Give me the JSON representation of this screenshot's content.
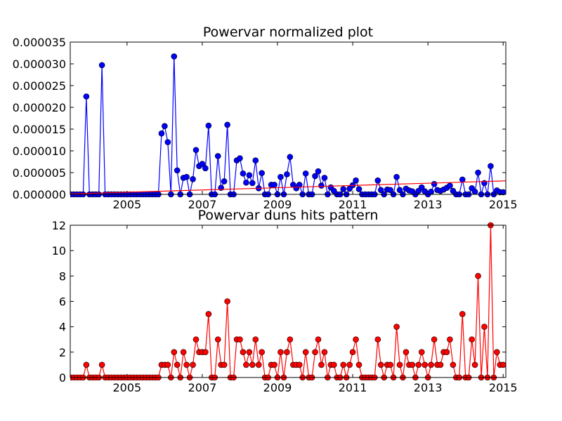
{
  "chart_data": [
    {
      "type": "line",
      "title": "Powervar normalized plot",
      "x": [
        2003.5,
        2003.583,
        2003.667,
        2003.75,
        2003.833,
        2003.917,
        2004,
        2004.083,
        2004.167,
        2004.25,
        2004.333,
        2004.417,
        2004.5,
        2004.583,
        2004.667,
        2004.75,
        2004.833,
        2004.917,
        2005,
        2005.083,
        2005.167,
        2005.25,
        2005.333,
        2005.417,
        2005.5,
        2005.583,
        2005.667,
        2005.75,
        2005.833,
        2005.917,
        2006,
        2006.083,
        2006.167,
        2006.25,
        2006.333,
        2006.417,
        2006.5,
        2006.583,
        2006.667,
        2006.75,
        2006.833,
        2006.917,
        2007,
        2007.083,
        2007.167,
        2007.25,
        2007.333,
        2007.417,
        2007.5,
        2007.583,
        2007.667,
        2007.75,
        2007.833,
        2007.917,
        2008,
        2008.083,
        2008.167,
        2008.25,
        2008.333,
        2008.417,
        2008.5,
        2008.583,
        2008.667,
        2008.75,
        2008.833,
        2008.917,
        2009,
        2009.083,
        2009.167,
        2009.25,
        2009.333,
        2009.417,
        2009.5,
        2009.583,
        2009.667,
        2009.75,
        2009.833,
        2009.917,
        2010,
        2010.083,
        2010.167,
        2010.25,
        2010.333,
        2010.417,
        2010.5,
        2010.583,
        2010.667,
        2010.75,
        2010.833,
        2010.917,
        2011,
        2011.083,
        2011.167,
        2011.25,
        2011.333,
        2011.417,
        2011.5,
        2011.583,
        2011.667,
        2011.75,
        2011.833,
        2011.917,
        2012,
        2012.083,
        2012.167,
        2012.25,
        2012.333,
        2012.417,
        2012.5,
        2012.583,
        2012.667,
        2012.75,
        2012.833,
        2012.917,
        2013,
        2013.083,
        2013.167,
        2013.25,
        2013.333,
        2013.417,
        2013.5,
        2013.583,
        2013.667,
        2013.75,
        2013.833,
        2013.917,
        2014,
        2014.083,
        2014.167,
        2014.25,
        2014.333,
        2014.417,
        2014.5,
        2014.583,
        2014.667,
        2014.75,
        2014.833,
        2014.917,
        2015
      ],
      "series": [
        {
          "color": "#0000ff",
          "values": [
            0,
            0,
            0,
            0,
            0,
            2.25e-05,
            0,
            0,
            0,
            0,
            2.97e-05,
            0,
            0,
            0,
            0,
            0,
            0,
            0,
            0,
            0,
            0,
            0,
            0,
            0,
            0,
            0,
            0,
            0,
            0,
            1.4e-05,
            1.57e-05,
            1.2e-05,
            0,
            3.17e-05,
            5.5e-06,
            0,
            3.8e-06,
            4e-06,
            0,
            3.5e-06,
            1.02e-05,
            6.5e-06,
            7e-06,
            6e-06,
            1.58e-05,
            0,
            0,
            8.8e-06,
            1.5e-06,
            3e-06,
            1.6e-05,
            0,
            0,
            7.8e-06,
            8.3e-06,
            4.8e-06,
            2.7e-06,
            4.4e-06,
            2.6e-06,
            7.8e-06,
            1.4e-06,
            4.9e-06,
            0,
            0,
            2.2e-06,
            2.2e-06,
            0,
            4e-06,
            0,
            4.6e-06,
            8.6e-06,
            2.2e-06,
            1.4e-06,
            2.2e-06,
            0,
            4.8e-06,
            0,
            0,
            4.2e-06,
            5.3e-06,
            2e-06,
            3.8e-06,
            0,
            1.6e-06,
            8e-07,
            0,
            0,
            1.2e-06,
            0,
            1.3e-06,
            2.1e-06,
            3.2e-06,
            1.2e-06,
            0,
            0,
            0,
            0,
            0,
            3.2e-06,
            1e-06,
            0,
            1.1e-06,
            1e-06,
            0,
            4e-06,
            1e-06,
            0,
            1.3e-06,
            9e-07,
            7e-07,
            0,
            8e-07,
            1.6e-06,
            7e-07,
            0,
            6e-07,
            2.4e-06,
            1e-06,
            8e-07,
            1.1e-06,
            1.5e-06,
            2e-06,
            8e-07,
            0,
            0,
            3.4e-06,
            0,
            0,
            1.4e-06,
            6e-07,
            5e-06,
            0,
            2.6e-06,
            0,
            6.5e-06,
            0,
            9e-07,
            5e-07,
            5e-07
          ]
        }
      ],
      "trend": {
        "color": "#ff0000",
        "x": [
          2003.5,
          2015.07
        ],
        "values": [
          1e-07,
          3.1e-06
        ]
      },
      "xlim": [
        2003.49,
        2015.07
      ],
      "xticks": [
        2005,
        2007,
        2009,
        2011,
        2013,
        2015
      ],
      "ylim": [
        0,
        3.5e-05
      ],
      "yticks": [
        {
          "value": 0,
          "label": "0.000000"
        },
        {
          "value": 5e-06,
          "label": "0.000005"
        },
        {
          "value": 1e-05,
          "label": "0.000010"
        },
        {
          "value": 1.5e-05,
          "label": "0.000015"
        },
        {
          "value": 2e-05,
          "label": "0.000020"
        },
        {
          "value": 2.5e-05,
          "label": "0.000025"
        },
        {
          "value": 3e-05,
          "label": "0.000030"
        },
        {
          "value": 3.5e-05,
          "label": "0.000035"
        }
      ]
    },
    {
      "type": "line",
      "title": "Powervar duns hits pattern",
      "series": [
        {
          "color": "#ff0000",
          "values": [
            0,
            0,
            0,
            0,
            0,
            1,
            0,
            0,
            0,
            0,
            1,
            0,
            0,
            0,
            0,
            0,
            0,
            0,
            0,
            0,
            0,
            0,
            0,
            0,
            0,
            0,
            0,
            0,
            0,
            1,
            1,
            1,
            0,
            2,
            1,
            0,
            2,
            1,
            0,
            1,
            3,
            2,
            2,
            2,
            5,
            0,
            0,
            3,
            1,
            1,
            6,
            0,
            0,
            3,
            3,
            2,
            1,
            2,
            1,
            3,
            1,
            2,
            0,
            0,
            1,
            1,
            0,
            2,
            0,
            2,
            3,
            1,
            1,
            1,
            0,
            2,
            0,
            0,
            2,
            3,
            1,
            2,
            0,
            1,
            1,
            0,
            0,
            1,
            0,
            1,
            2,
            3,
            1,
            0,
            0,
            0,
            0,
            0,
            3,
            1,
            0,
            1,
            1,
            0,
            4,
            1,
            0,
            2,
            1,
            1,
            0,
            1,
            2,
            1,
            0,
            1,
            3,
            1,
            1,
            2,
            2,
            3,
            1,
            0,
            0,
            5,
            0,
            0,
            3,
            1,
            8,
            0,
            4,
            0,
            12,
            0,
            2,
            1,
            1
          ]
        }
      ],
      "xlim": [
        2003.49,
        2015.07
      ],
      "xticks": [
        2005,
        2007,
        2009,
        2011,
        2013,
        2015
      ],
      "ylim": [
        0,
        12
      ],
      "yticks": [
        0,
        2,
        4,
        6,
        8,
        10,
        12
      ]
    }
  ]
}
